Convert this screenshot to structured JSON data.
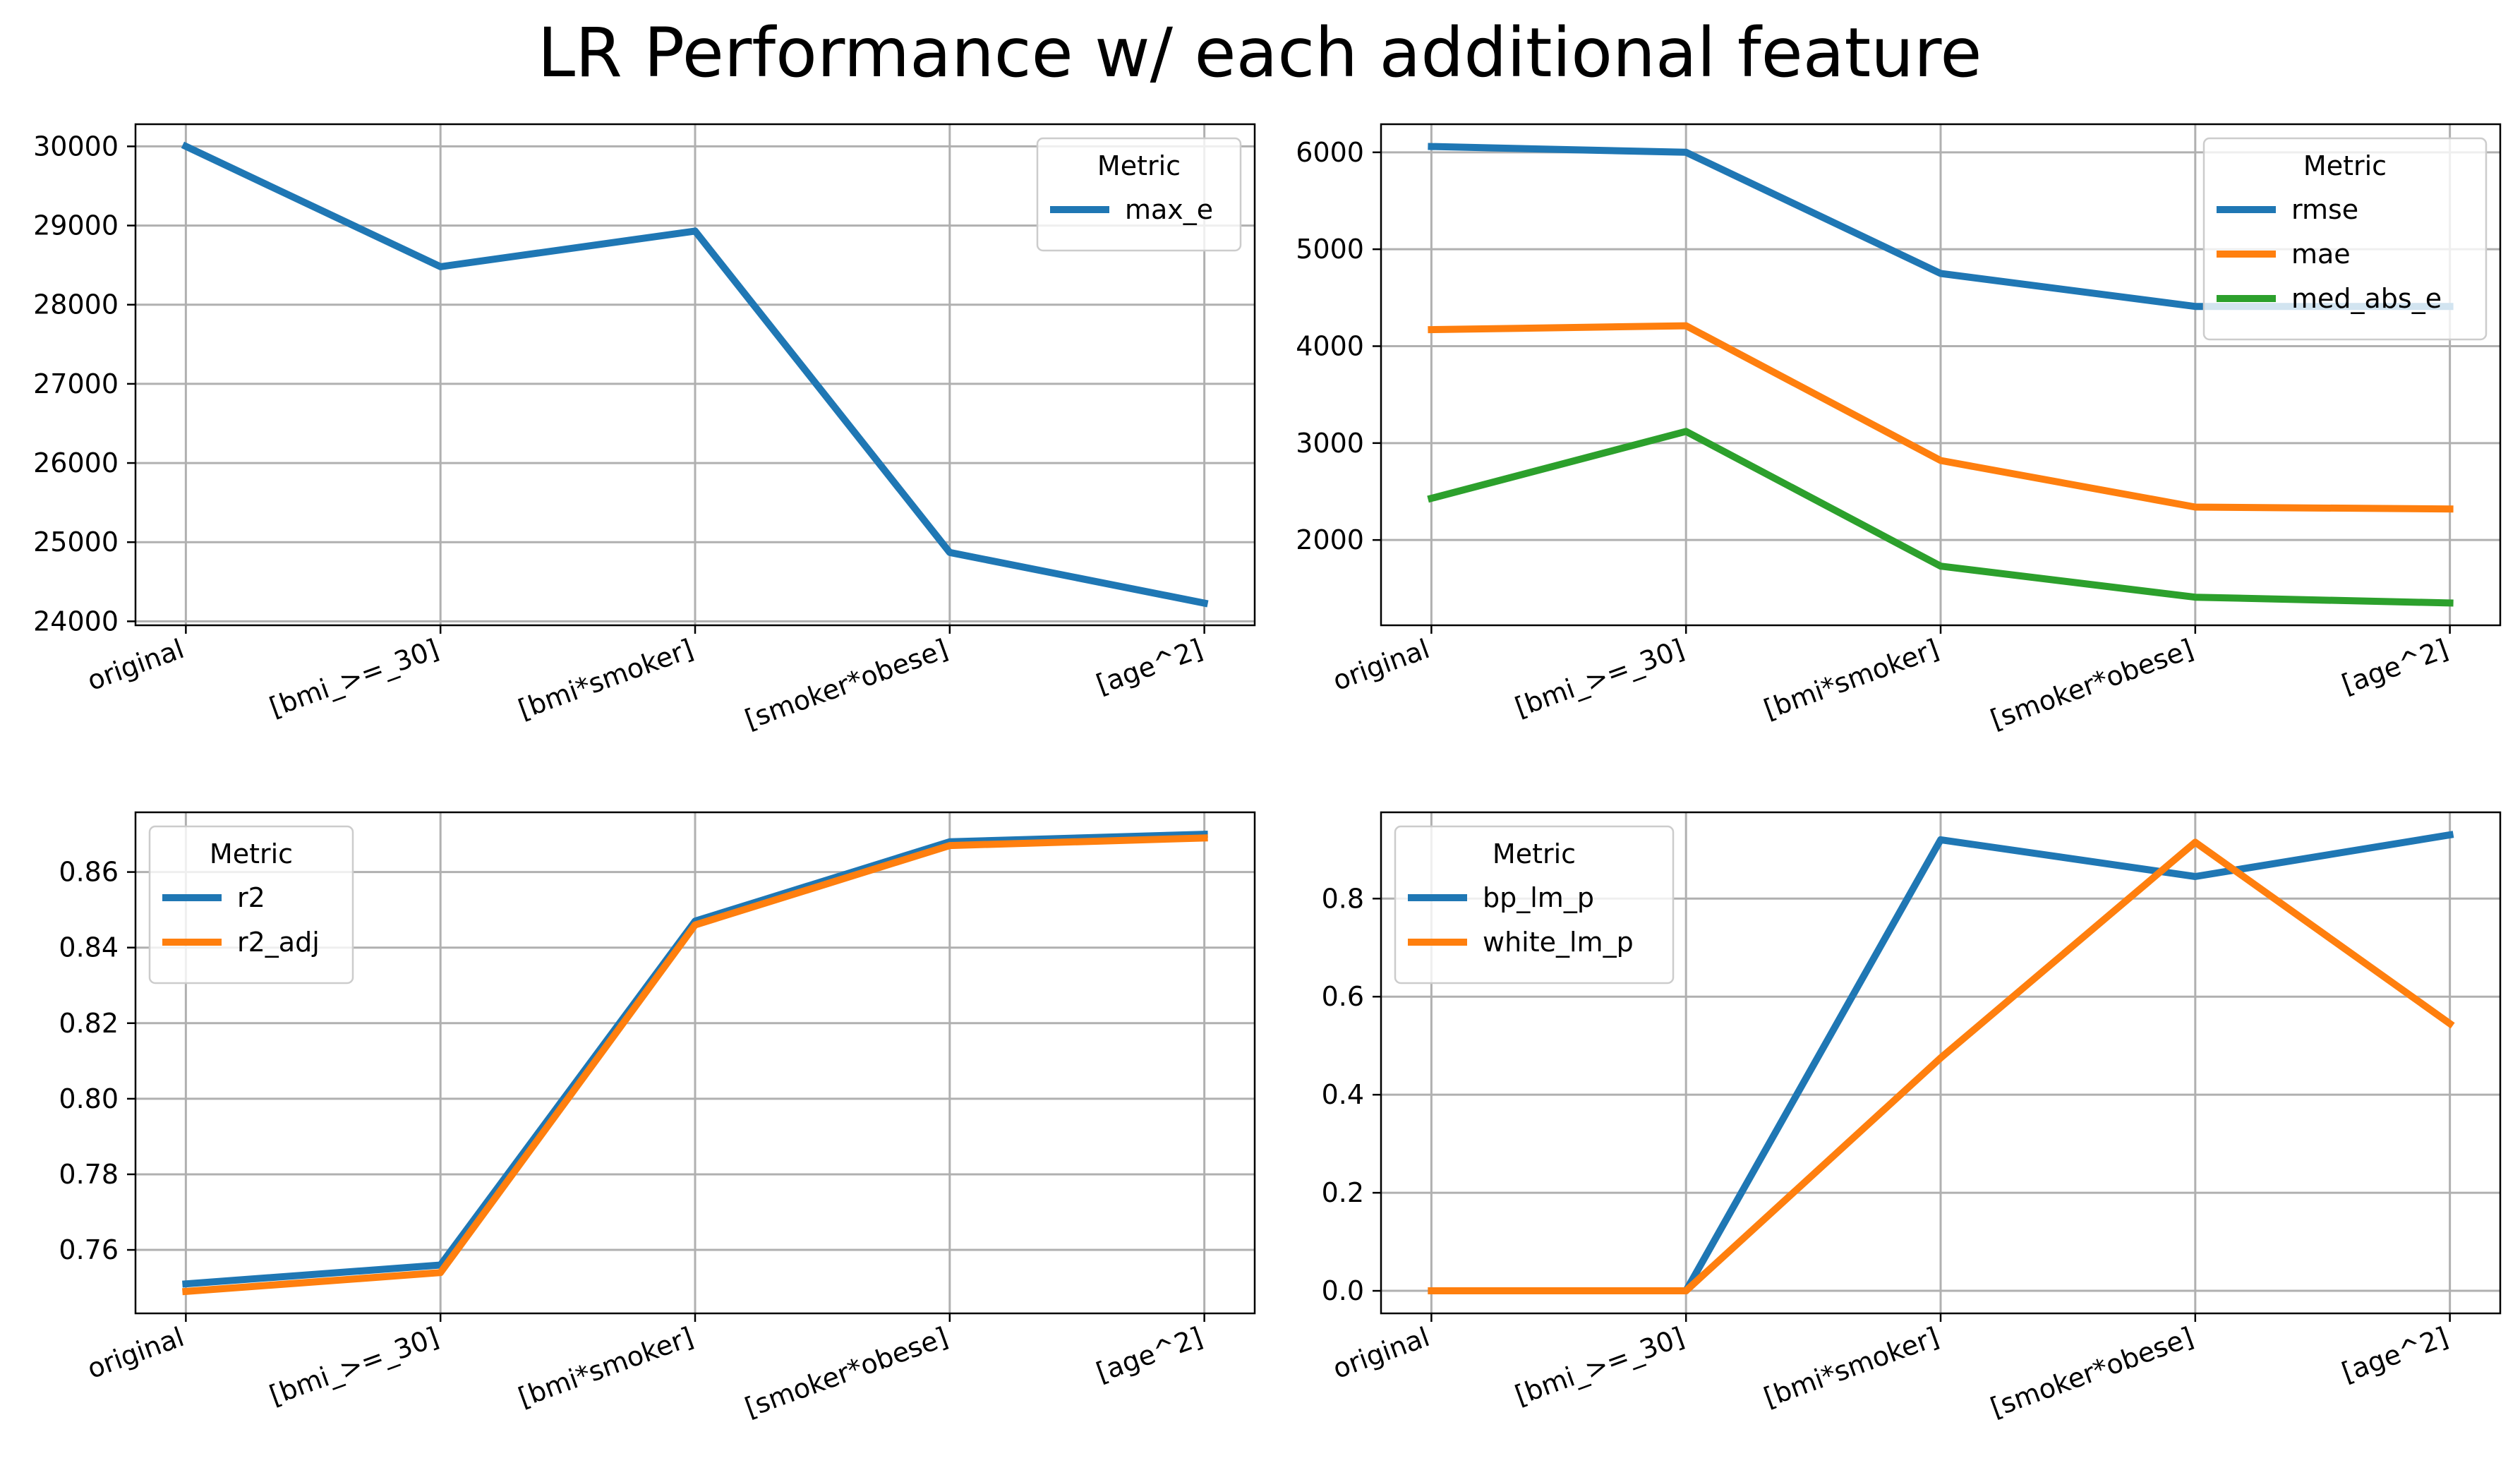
{
  "figure": {
    "title": "LR Performance w/ each additional feature"
  },
  "chart_data": [
    {
      "type": "line",
      "categories": [
        "original",
        "[bmi_>=_30]",
        "[bmi*smoker]",
        "[smoker*obese]",
        "[age^2]"
      ],
      "series": [
        {
          "name": "max_e",
          "color": "#1f77b4",
          "values": [
            30000,
            28480,
            28930,
            24870,
            24230
          ]
        }
      ],
      "ylim": [
        23950,
        30280
      ],
      "yticks": [
        24000,
        25000,
        26000,
        27000,
        28000,
        29000,
        30000
      ],
      "ytick_labels": [
        "24000",
        "25000",
        "26000",
        "27000",
        "28000",
        "29000",
        "30000"
      ],
      "grid": true,
      "legend": {
        "title": "Metric",
        "placement": "top-right"
      }
    },
    {
      "type": "line",
      "categories": [
        "original",
        "[bmi_>=_30]",
        "[bmi*smoker]",
        "[smoker*obese]",
        "[age^2]"
      ],
      "series": [
        {
          "name": "rmse",
          "color": "#1f77b4",
          "values": [
            6060,
            6000,
            4750,
            4410,
            4410
          ]
        },
        {
          "name": "mae",
          "color": "#ff7f0e",
          "values": [
            4170,
            4210,
            2820,
            2340,
            2320
          ]
        },
        {
          "name": "med_abs_e",
          "color": "#2ca02c",
          "values": [
            2430,
            3120,
            1730,
            1410,
            1350
          ]
        }
      ],
      "ylim": [
        1120,
        6290
      ],
      "yticks": [
        2000,
        3000,
        4000,
        5000,
        6000
      ],
      "ytick_labels": [
        "2000",
        "3000",
        "4000",
        "5000",
        "6000"
      ],
      "grid": true,
      "legend": {
        "title": "Metric",
        "placement": "top-right"
      }
    },
    {
      "type": "line",
      "categories": [
        "original",
        "[bmi_>=_30]",
        "[bmi*smoker]",
        "[smoker*obese]",
        "[age^2]"
      ],
      "series": [
        {
          "name": "r2",
          "color": "#1f77b4",
          "values": [
            0.751,
            0.756,
            0.847,
            0.868,
            0.87
          ]
        },
        {
          "name": "r2_adj",
          "color": "#ff7f0e",
          "values": [
            0.749,
            0.754,
            0.846,
            0.867,
            0.869
          ]
        }
      ],
      "ylim": [
        0.7432,
        0.8758
      ],
      "yticks": [
        0.76,
        0.78,
        0.8,
        0.82,
        0.84,
        0.86
      ],
      "ytick_labels": [
        "0.76",
        "0.78",
        "0.80",
        "0.82",
        "0.84",
        "0.86"
      ],
      "grid": true,
      "legend": {
        "title": "Metric",
        "placement": "top-left"
      }
    },
    {
      "type": "line",
      "categories": [
        "original",
        "[bmi_>=_30]",
        "[bmi*smoker]",
        "[smoker*obese]",
        "[age^2]"
      ],
      "series": [
        {
          "name": "bp_lm_p",
          "color": "#1f77b4",
          "values": [
            0.0,
            0.0,
            0.92,
            0.845,
            0.93
          ]
        },
        {
          "name": "white_lm_p",
          "color": "#ff7f0e",
          "values": [
            0.0,
            0.0,
            0.475,
            0.915,
            0.545
          ]
        }
      ],
      "ylim": [
        -0.046,
        0.976
      ],
      "yticks": [
        0.0,
        0.2,
        0.4,
        0.6,
        0.8
      ],
      "ytick_labels": [
        "0.0",
        "0.2",
        "0.4",
        "0.6",
        "0.8"
      ],
      "grid": true,
      "legend": {
        "title": "Metric",
        "placement": "top-left"
      }
    }
  ]
}
